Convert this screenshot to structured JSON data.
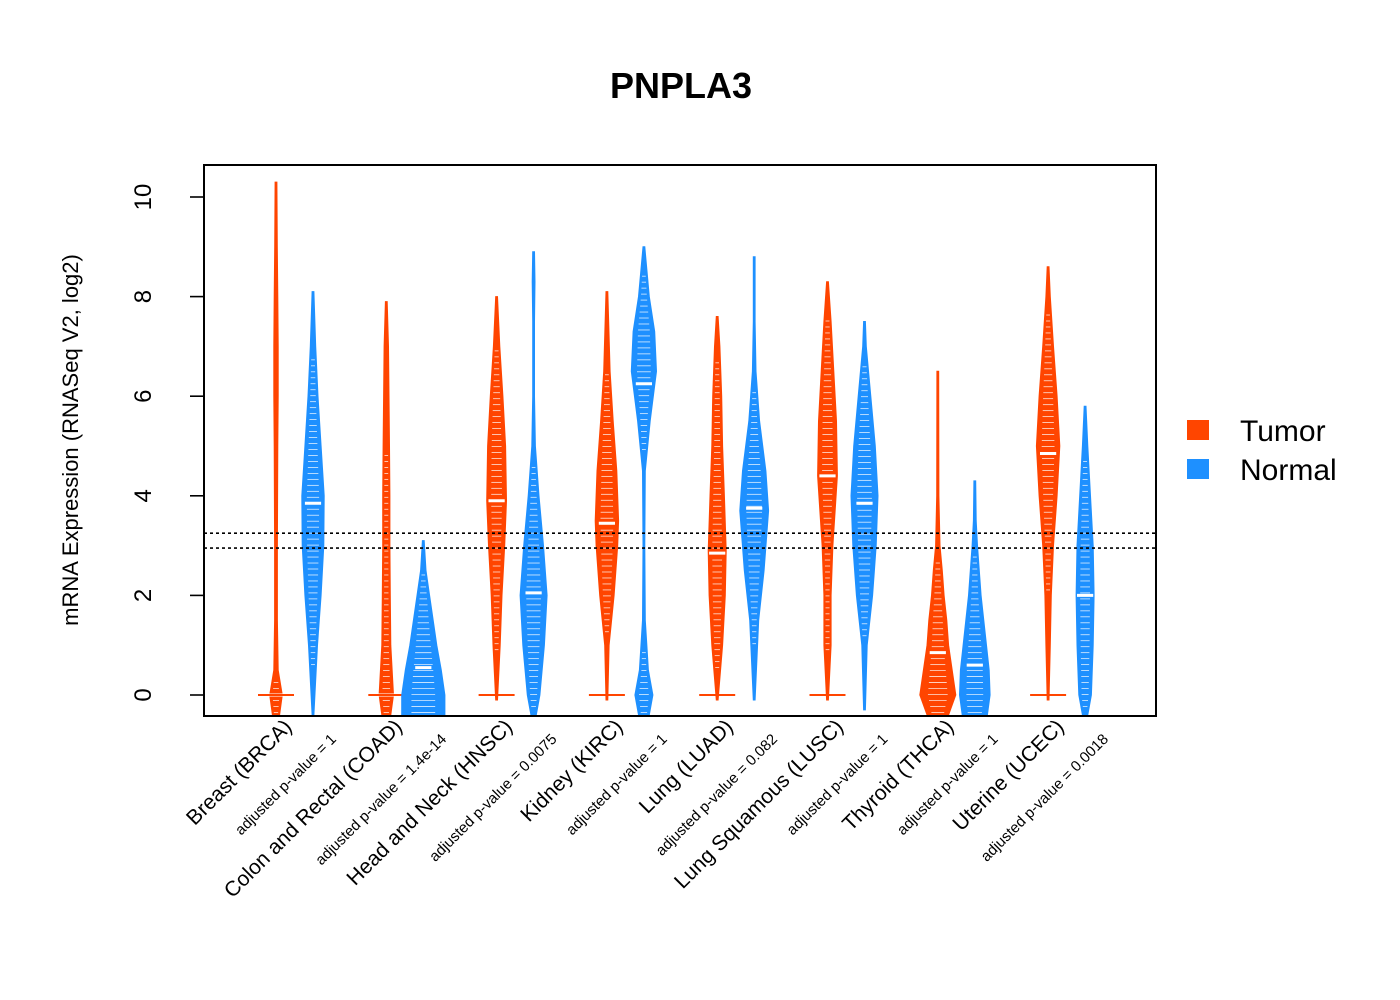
{
  "chart_data": {
    "type": "violin",
    "title": "PNPLA3",
    "xlabel": "",
    "ylabel": "mRNA Expression (RNASeq V2, log2)",
    "ylim": [
      -0.4,
      10.7
    ],
    "yticks": [
      0,
      2,
      4,
      6,
      8,
      10
    ],
    "yticklabels": [
      "0",
      "2",
      "4",
      "6",
      "8",
      "10"
    ],
    "reference_lines": [
      2.95,
      3.25
    ],
    "legend": {
      "position": "right",
      "entries": [
        {
          "name": "Tumor",
          "color": "#FF4500"
        },
        {
          "name": "Normal",
          "color": "#1E90FF"
        }
      ]
    },
    "categories": [
      {
        "label": "Breast (BRCA)",
        "pvalue_label": "adjusted p-value = 1"
      },
      {
        "label": "Colon and Rectal (COAD)",
        "pvalue_label": "adjusted p-value = 1.4e-14"
      },
      {
        "label": "Head and Neck (HNSC)",
        "pvalue_label": "adjusted p-value = 0.0075"
      },
      {
        "label": "Kidney (KIRC)",
        "pvalue_label": "adjusted p-value = 1"
      },
      {
        "label": "Lung (LUAD)",
        "pvalue_label": "adjusted p-value = 0.082"
      },
      {
        "label": "Lung Squamous (LUSC)",
        "pvalue_label": "adjusted p-value = 1"
      },
      {
        "label": "Thyroid (THCA)",
        "pvalue_label": "adjusted p-value = 1"
      },
      {
        "label": "Uterine (UCEC)",
        "pvalue_label": "adjusted p-value = 0.0018"
      }
    ],
    "series": [
      {
        "name": "Tumor",
        "color": "#FF4500",
        "violins": [
          {
            "min": -0.4,
            "max": 10.3,
            "median": 0,
            "zero_line": true,
            "density": [
              [
                -0.4,
                0.2
              ],
              [
                0,
                0.35
              ],
              [
                0.5,
                0.12
              ],
              [
                1.5,
                0.08
              ],
              [
                3,
                0.08
              ],
              [
                5,
                0.1
              ],
              [
                6,
                0.12
              ],
              [
                7,
                0.12
              ],
              [
                8,
                0.1
              ],
              [
                9,
                0.07
              ],
              [
                10.3,
                0.02
              ]
            ]
          },
          {
            "min": -0.4,
            "max": 7.9,
            "median": 0,
            "zero_line": true,
            "density": [
              [
                -0.4,
                0.25
              ],
              [
                0,
                0.4
              ],
              [
                1,
                0.25
              ],
              [
                2,
                0.22
              ],
              [
                3,
                0.2
              ],
              [
                4,
                0.2
              ],
              [
                5,
                0.18
              ],
              [
                6,
                0.15
              ],
              [
                7,
                0.12
              ],
              [
                7.9,
                0.04
              ]
            ]
          },
          {
            "min": -0.1,
            "max": 8.0,
            "median": 3.9,
            "zero_line": true,
            "density": [
              [
                -0.1,
                0.05
              ],
              [
                1,
                0.2
              ],
              [
                2,
                0.3
              ],
              [
                3,
                0.45
              ],
              [
                3.9,
                0.55
              ],
              [
                5,
                0.5
              ],
              [
                6,
                0.35
              ],
              [
                7,
                0.18
              ],
              [
                8,
                0.04
              ]
            ]
          },
          {
            "min": -0.1,
            "max": 8.1,
            "median": 3.45,
            "zero_line": true,
            "density": [
              [
                -0.1,
                0.05
              ],
              [
                1,
                0.12
              ],
              [
                2,
                0.4
              ],
              [
                3,
                0.6
              ],
              [
                3.5,
                0.65
              ],
              [
                4.5,
                0.55
              ],
              [
                5.5,
                0.35
              ],
              [
                6.5,
                0.18
              ],
              [
                8.1,
                0.04
              ]
            ]
          },
          {
            "min": -0.1,
            "max": 7.6,
            "median": 2.85,
            "zero_line": true,
            "density": [
              [
                -0.1,
                0.05
              ],
              [
                1,
                0.3
              ],
              [
                2,
                0.45
              ],
              [
                2.9,
                0.5
              ],
              [
                4,
                0.4
              ],
              [
                5,
                0.3
              ],
              [
                6,
                0.25
              ],
              [
                7,
                0.15
              ],
              [
                7.6,
                0.04
              ]
            ]
          },
          {
            "min": -0.1,
            "max": 8.3,
            "median": 4.4,
            "zero_line": true,
            "density": [
              [
                -0.1,
                0.05
              ],
              [
                1,
                0.2
              ],
              [
                2,
                0.2
              ],
              [
                3,
                0.3
              ],
              [
                4.4,
                0.55
              ],
              [
                5.5,
                0.5
              ],
              [
                6.5,
                0.35
              ],
              [
                7.5,
                0.2
              ],
              [
                8.3,
                0.04
              ]
            ]
          },
          {
            "min": -0.4,
            "max": 6.5,
            "median": 0.85,
            "zero_line": false,
            "density": [
              [
                -0.4,
                0.6
              ],
              [
                0,
                1.0
              ],
              [
                0.5,
                0.8
              ],
              [
                1,
                0.6
              ],
              [
                1.5,
                0.5
              ],
              [
                2,
                0.35
              ],
              [
                2.5,
                0.25
              ],
              [
                3,
                0.12
              ],
              [
                4,
                0.06
              ],
              [
                6.5,
                0.01
              ]
            ]
          },
          {
            "min": -0.1,
            "max": 8.6,
            "median": 4.85,
            "zero_line": true,
            "density": [
              [
                -0.1,
                0.05
              ],
              [
                1,
                0.12
              ],
              [
                2,
                0.18
              ],
              [
                3,
                0.3
              ],
              [
                4,
                0.5
              ],
              [
                5,
                0.65
              ],
              [
                6,
                0.5
              ],
              [
                7,
                0.3
              ],
              [
                8,
                0.12
              ],
              [
                8.6,
                0.02
              ]
            ]
          }
        ]
      },
      {
        "name": "Normal",
        "color": "#1E90FF",
        "violins": [
          {
            "min": -0.4,
            "max": 8.1,
            "median": 3.85,
            "zero_line": false,
            "density": [
              [
                -0.4,
                0.05
              ],
              [
                1,
                0.25
              ],
              [
                2,
                0.45
              ],
              [
                3,
                0.6
              ],
              [
                4,
                0.62
              ],
              [
                5,
                0.45
              ],
              [
                6,
                0.28
              ],
              [
                7,
                0.15
              ],
              [
                8.1,
                0.03
              ]
            ]
          },
          {
            "min": -0.4,
            "max": 3.1,
            "median": 0.55,
            "zero_line": false,
            "density": [
              [
                -0.4,
                1.2
              ],
              [
                0,
                1.2
              ],
              [
                0.5,
                1.0
              ],
              [
                1,
                0.75
              ],
              [
                1.5,
                0.55
              ],
              [
                2,
                0.35
              ],
              [
                2.5,
                0.15
              ],
              [
                3.1,
                0.02
              ]
            ]
          },
          {
            "min": -0.4,
            "max": 8.9,
            "median": 2.05,
            "zero_line": false,
            "density": [
              [
                -0.4,
                0.15
              ],
              [
                0,
                0.35
              ],
              [
                1,
                0.6
              ],
              [
                2,
                0.75
              ],
              [
                3,
                0.55
              ],
              [
                4,
                0.3
              ],
              [
                5,
                0.1
              ],
              [
                6,
                0.03
              ],
              [
                7.5,
                0.03
              ],
              [
                8.3,
                0.08
              ],
              [
                8.9,
                0.02
              ]
            ]
          },
          {
            "min": -0.4,
            "max": 9.0,
            "median": 6.25,
            "zero_line": false,
            "density": [
              [
                -0.4,
                0.3
              ],
              [
                0,
                0.5
              ],
              [
                0.5,
                0.25
              ],
              [
                1.5,
                0.08
              ],
              [
                3,
                0.05
              ],
              [
                4.5,
                0.08
              ],
              [
                5.5,
                0.35
              ],
              [
                6.5,
                0.7
              ],
              [
                7.3,
                0.6
              ],
              [
                8,
                0.3
              ],
              [
                9,
                0.02
              ]
            ]
          },
          {
            "min": -0.1,
            "max": 8.8,
            "median": 3.75,
            "zero_line": false,
            "density": [
              [
                -0.1,
                0.02
              ],
              [
                1.5,
                0.25
              ],
              [
                2.5,
                0.55
              ],
              [
                3.7,
                0.8
              ],
              [
                4.5,
                0.65
              ],
              [
                5.5,
                0.3
              ],
              [
                6.5,
                0.1
              ],
              [
                7.5,
                0.04
              ],
              [
                8.8,
                0.01
              ]
            ]
          },
          {
            "min": -0.3,
            "max": 7.5,
            "median": 3.85,
            "zero_line": false,
            "density": [
              [
                -0.3,
                0.02
              ],
              [
                1,
                0.15
              ],
              [
                2,
                0.45
              ],
              [
                3,
                0.65
              ],
              [
                4,
                0.75
              ],
              [
                5,
                0.6
              ],
              [
                6,
                0.35
              ],
              [
                7,
                0.1
              ],
              [
                7.5,
                0.02
              ]
            ]
          },
          {
            "min": -0.4,
            "max": 4.3,
            "median": 0.6,
            "zero_line": false,
            "density": [
              [
                -0.4,
                0.7
              ],
              [
                0,
                0.85
              ],
              [
                0.5,
                0.8
              ],
              [
                1,
                0.65
              ],
              [
                1.5,
                0.5
              ],
              [
                2,
                0.35
              ],
              [
                2.5,
                0.25
              ],
              [
                3,
                0.15
              ],
              [
                3.5,
                0.08
              ],
              [
                4.3,
                0.01
              ]
            ]
          },
          {
            "min": -0.4,
            "max": 5.8,
            "median": 2.0,
            "zero_line": false,
            "density": [
              [
                -0.4,
                0.15
              ],
              [
                0,
                0.35
              ],
              [
                1,
                0.45
              ],
              [
                2,
                0.5
              ],
              [
                3,
                0.45
              ],
              [
                4,
                0.3
              ],
              [
                5,
                0.15
              ],
              [
                5.8,
                0.02
              ]
            ]
          }
        ]
      }
    ]
  }
}
